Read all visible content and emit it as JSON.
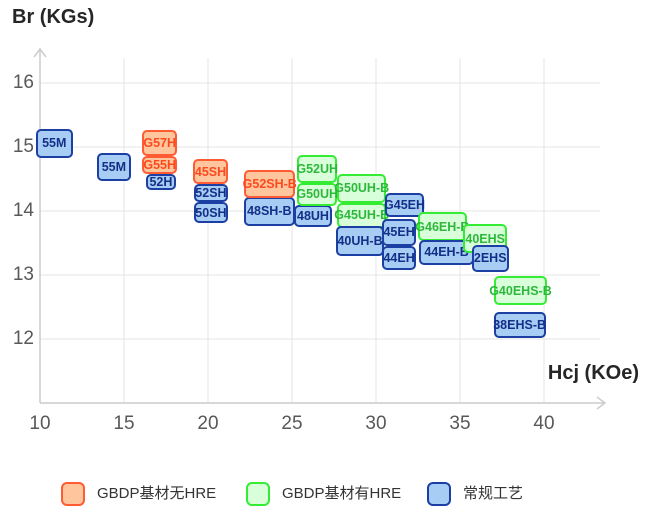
{
  "chart_data": {
    "type": "scatter",
    "title": "",
    "xlabel": "Hcj (KOe)",
    "ylabel": "Br (KGs)",
    "xlim": [
      10,
      40
    ],
    "ylim": [
      12,
      16
    ],
    "x_ticks": [
      10,
      15,
      20,
      25,
      30,
      35,
      40
    ],
    "y_ticks": [
      16,
      15,
      14,
      13,
      12
    ],
    "grid": true,
    "legend_position": "bottom",
    "series": [
      {
        "name": "GBDP基材无HRE",
        "fill": "#ffc59d",
        "border": "#ff5c33",
        "text": "#fb4a1e"
      },
      {
        "name": "GBDP基材有HRE",
        "fill": "#d9ffda",
        "border": "#35ec35",
        "text": "#2db83c"
      },
      {
        "name": "常规工艺",
        "fill": "#a8cdf5",
        "border": "#1c3fa3",
        "text": "#132f87"
      }
    ],
    "points": [
      {
        "label": "55M",
        "s": 2,
        "hcj": [
          9.75,
          11.95
        ],
        "br": [
          14.83,
          15.28
        ]
      },
      {
        "label": "55M",
        "s": 2,
        "hcj": [
          13.4,
          15.4
        ],
        "br": [
          14.47,
          14.91
        ]
      },
      {
        "label": "52H",
        "s": 2,
        "hcj": [
          16.3,
          18.1
        ],
        "br": [
          14.33,
          14.58
        ]
      },
      {
        "label": "G57H",
        "s": 0,
        "hcj": [
          16.1,
          18.15
        ],
        "br": [
          14.86,
          15.27
        ]
      },
      {
        "label": "G55H",
        "s": 0,
        "hcj": [
          16.1,
          18.15
        ],
        "br": [
          14.58,
          14.86
        ]
      },
      {
        "label": "50SH",
        "s": 2,
        "hcj": [
          19.15,
          21.2
        ],
        "br": [
          13.81,
          14.14
        ]
      },
      {
        "label": "52SH",
        "s": 2,
        "hcj": [
          19.15,
          21.2
        ],
        "br": [
          14.14,
          14.42
        ]
      },
      {
        "label": "45SH",
        "s": 0,
        "hcj": [
          19.1,
          21.2
        ],
        "br": [
          14.42,
          14.81
        ]
      },
      {
        "label": "48SH-B",
        "s": 2,
        "hcj": [
          22.15,
          25.15
        ],
        "br": [
          13.77,
          14.22
        ]
      },
      {
        "label": "G52SH-B",
        "s": 0,
        "hcj": [
          22.15,
          25.2
        ],
        "br": [
          14.2,
          14.64
        ]
      },
      {
        "label": "48UH",
        "s": 2,
        "hcj": [
          25.1,
          27.4
        ],
        "br": [
          13.75,
          14.09
        ]
      },
      {
        "label": "G52UH",
        "s": 1,
        "hcj": [
          25.3,
          27.7
        ],
        "br": [
          14.44,
          14.88
        ]
      },
      {
        "label": "G50UH",
        "s": 1,
        "hcj": [
          25.3,
          27.7
        ],
        "br": [
          14.08,
          14.44
        ]
      },
      {
        "label": "G50UH-B",
        "s": 1,
        "hcj": [
          27.7,
          30.6
        ],
        "br": [
          14.13,
          14.58
        ]
      },
      {
        "label": "G45UH-B",
        "s": 1,
        "hcj": [
          27.7,
          30.6
        ],
        "br": [
          13.73,
          14.13
        ]
      },
      {
        "label": "40UH-B",
        "s": 2,
        "hcj": [
          27.6,
          30.5
        ],
        "br": [
          13.3,
          13.77
        ]
      },
      {
        "label": "G45EH",
        "s": 2,
        "hcj": [
          30.55,
          32.85
        ],
        "br": [
          13.91,
          14.28
        ]
      },
      {
        "label": "45EH",
        "s": 2,
        "hcj": [
          30.35,
          32.4
        ],
        "br": [
          13.45,
          13.88
        ]
      },
      {
        "label": "44EH",
        "s": 2,
        "hcj": [
          30.35,
          32.4
        ],
        "br": [
          13.08,
          13.45
        ]
      },
      {
        "label": "G46EH-B",
        "s": 1,
        "hcj": [
          32.5,
          35.4
        ],
        "br": [
          13.53,
          13.98
        ]
      },
      {
        "label": "44EH-B",
        "s": 2,
        "hcj": [
          32.55,
          35.85
        ],
        "br": [
          13.16,
          13.55
        ]
      },
      {
        "label": "40EHS",
        "s": 1,
        "hcj": [
          35.2,
          37.8
        ],
        "br": [
          13.34,
          13.8
        ]
      },
      {
        "label": "2EHS",
        "s": 2,
        "hcj": [
          35.7,
          37.9
        ],
        "br": [
          13.05,
          13.47
        ]
      },
      {
        "label": "G40EHS-B",
        "s": 1,
        "hcj": [
          37.0,
          40.2
        ],
        "br": [
          12.53,
          12.98
        ]
      },
      {
        "label": "38EHS-B",
        "s": 2,
        "hcj": [
          37.0,
          40.1
        ],
        "br": [
          12.02,
          12.42
        ]
      }
    ]
  },
  "colors": {
    "grid": "#e4e4e4",
    "axis": "#cccccc",
    "tick_text": "#585858",
    "title_text": "#262626",
    "legend_text": "#333333"
  }
}
